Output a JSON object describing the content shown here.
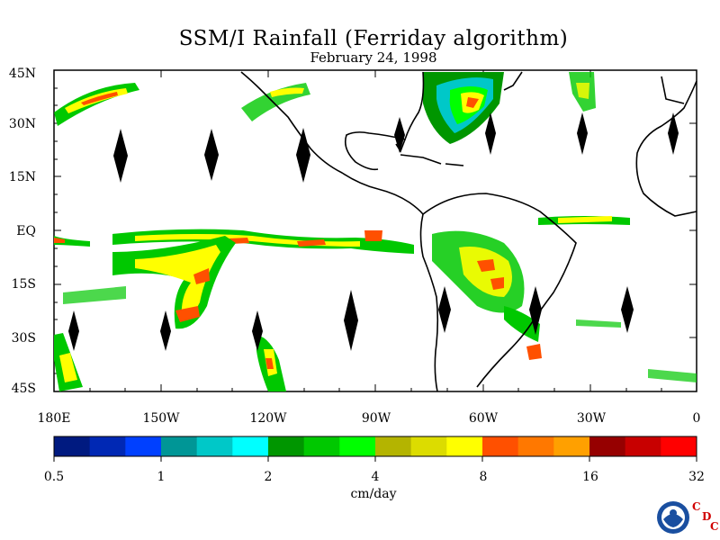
{
  "title": "SSM/I Rainfall (Ferriday algorithm)",
  "subtitle": "February 24, 1998",
  "lat_labels": [
    "45N",
    "30N",
    "15N",
    "EQ",
    "15S",
    "30S",
    "45S"
  ],
  "lon_labels": [
    "180E",
    "150W",
    "120W",
    "90W",
    "60W",
    "30W",
    "0"
  ],
  "colorbar": {
    "labels": [
      "0.5",
      "1",
      "2",
      "4",
      "8",
      "16",
      "32"
    ],
    "units": "cm/day",
    "colors": [
      "#001a80",
      "#0028b4",
      "#0040ff",
      "#009696",
      "#00c8c8",
      "#00ffff",
      "#009600",
      "#00c800",
      "#00ff00",
      "#b4b400",
      "#dcdc00",
      "#ffff00",
      "#ff5000",
      "#ff7800",
      "#ffa000",
      "#960000",
      "#c80000",
      "#ff0000"
    ]
  },
  "logo": {
    "name": "NOAA",
    "letters": [
      "C",
      "D",
      "C"
    ]
  }
}
